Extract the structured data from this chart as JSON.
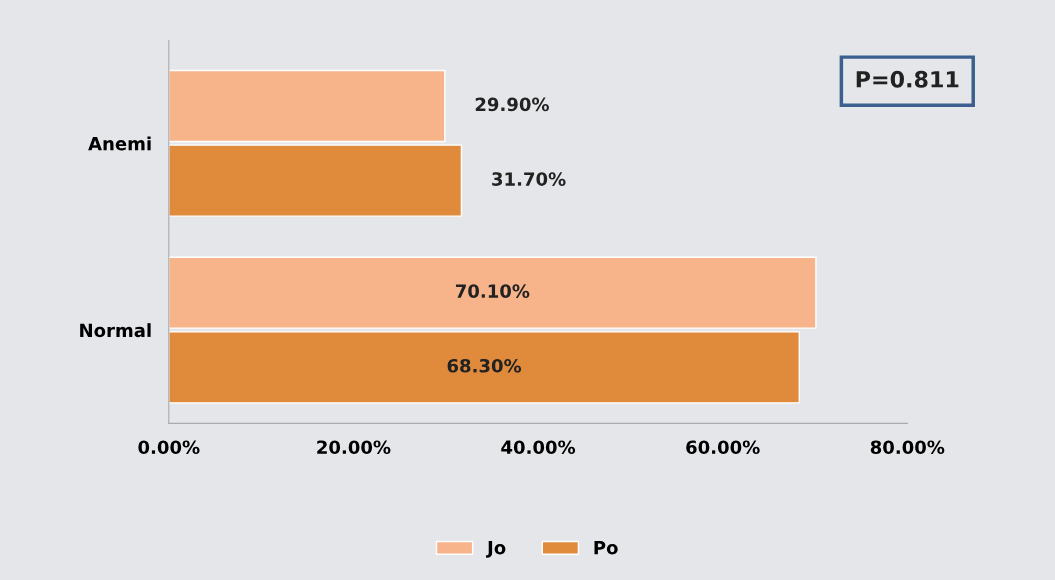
{
  "chart_data": {
    "type": "bar",
    "orientation": "horizontal",
    "categories": [
      "Anemi",
      "Normal"
    ],
    "series": [
      {
        "name": "Jo",
        "color": "#f7b38a",
        "values": [
          29.9,
          70.1
        ],
        "value_labels": [
          "29.90%",
          "70.10%"
        ]
      },
      {
        "name": "Po",
        "color": "#e08a3c",
        "values": [
          31.7,
          68.3
        ],
        "value_labels": [
          "31.70%",
          "68.30%"
        ]
      }
    ],
    "xlim": [
      0,
      80
    ],
    "xticks": [
      {
        "value": 0,
        "label": "0.00%"
      },
      {
        "value": 20,
        "label": "20.00%"
      },
      {
        "value": 40,
        "label": "40.00%"
      },
      {
        "value": 60,
        "label": "60.00%"
      },
      {
        "value": 80,
        "label": "80.00%"
      }
    ],
    "annotations": [
      "P=0.811"
    ],
    "legend": "bottom",
    "grid": false
  }
}
